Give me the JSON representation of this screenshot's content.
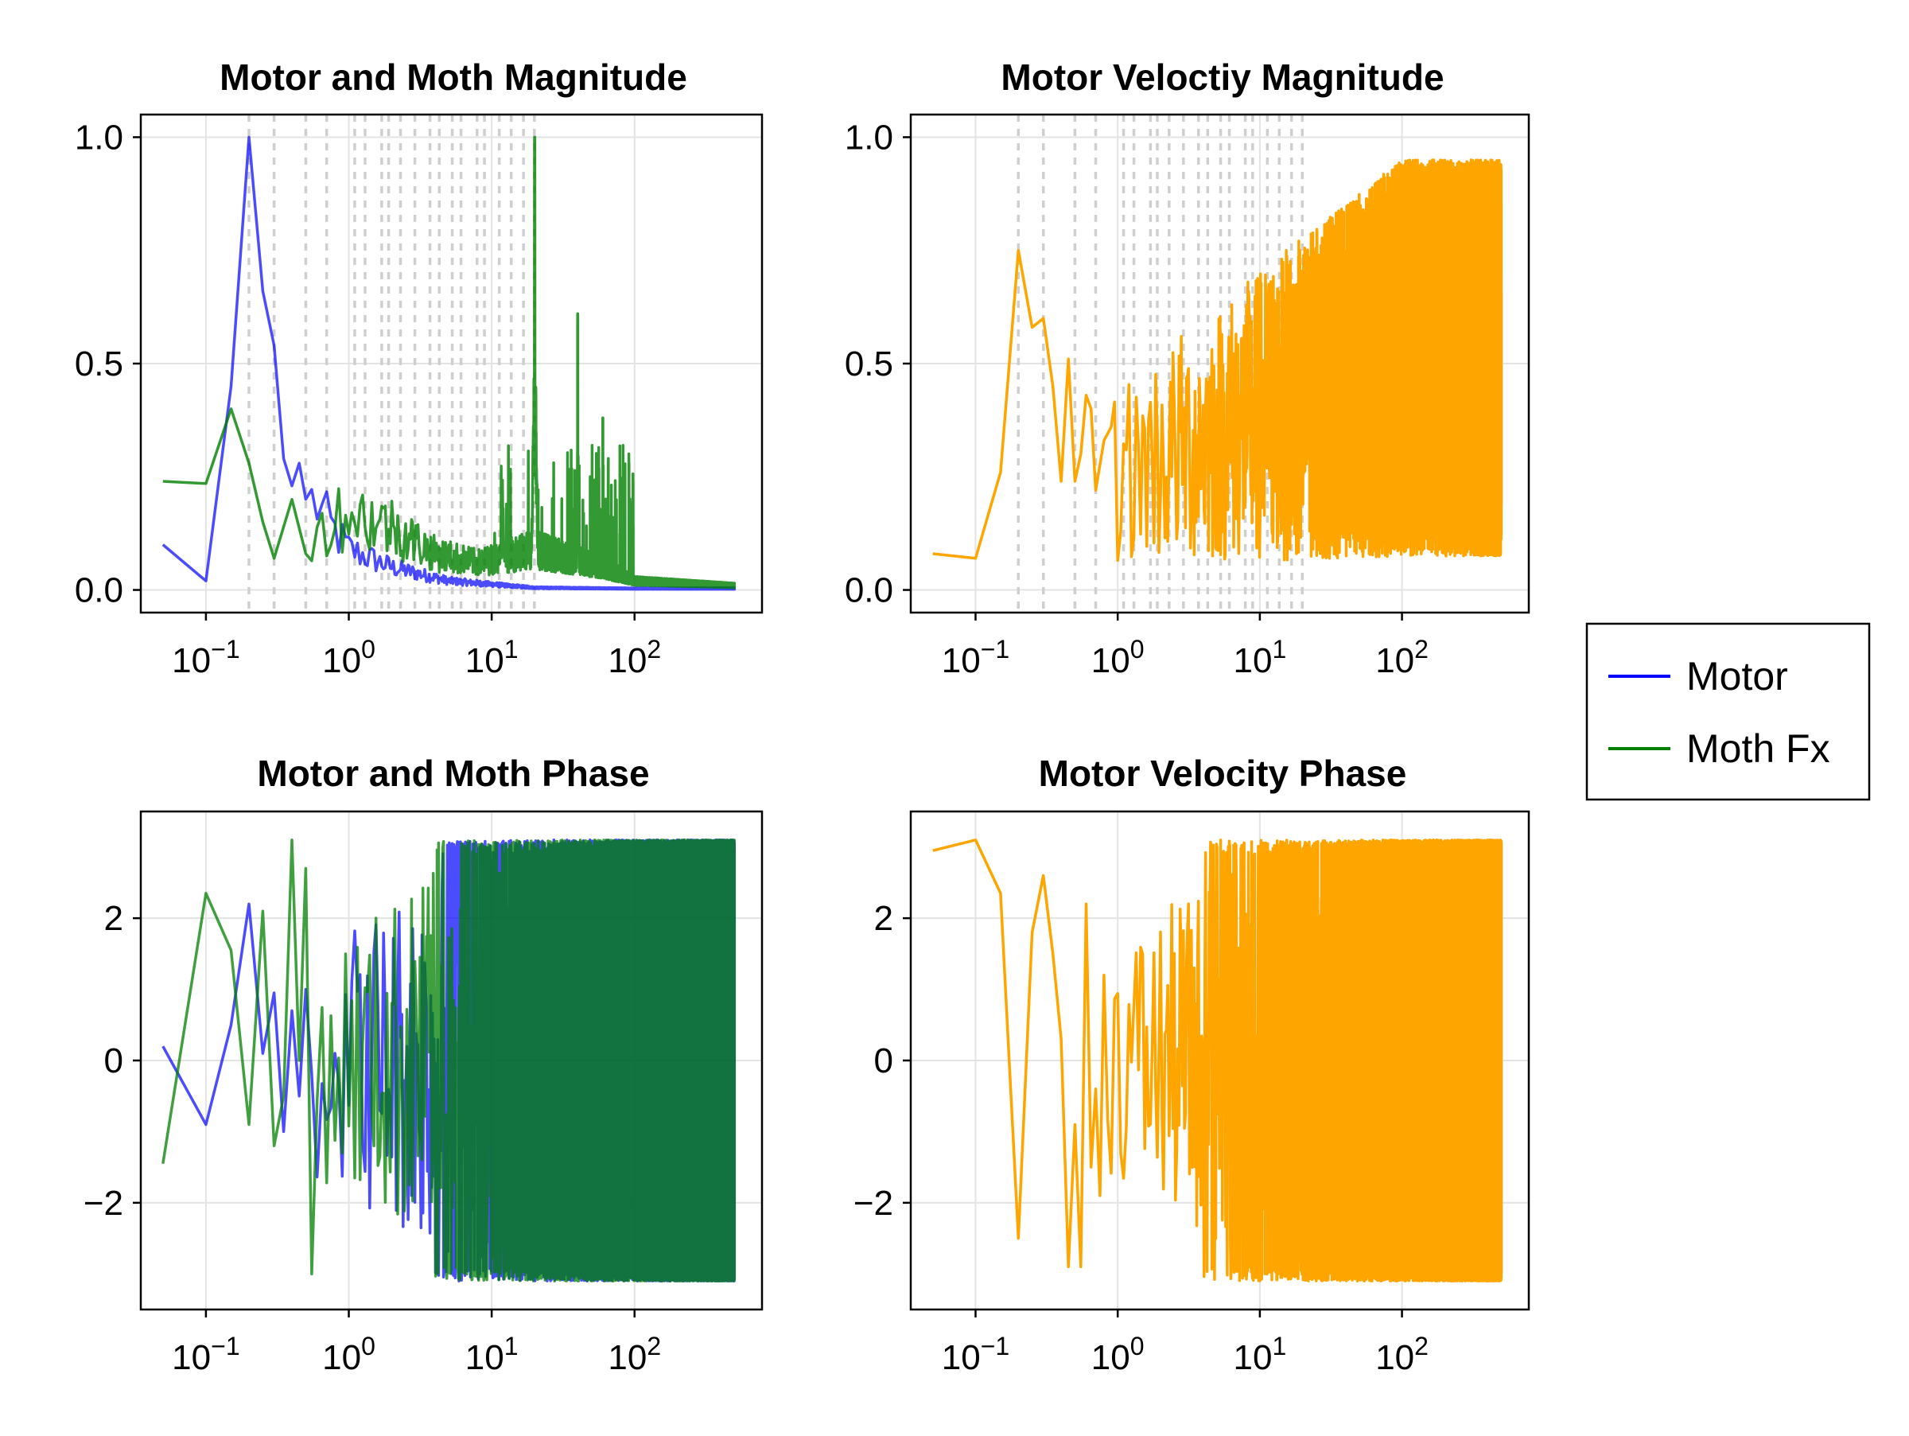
{
  "chart_data": [
    {
      "id": "mag-motor-moth",
      "type": "line",
      "title": "Motor and Moth Magnitude",
      "xscale": "log",
      "xlim": [
        0.035,
        780
      ],
      "ylim": [
        -0.05,
        1.05
      ],
      "xticks": [
        {
          "label": "10",
          "exp": "−1"
        },
        {
          "label": "10",
          "exp": "0"
        },
        {
          "label": "10",
          "exp": "1"
        },
        {
          "label": "10",
          "exp": "2"
        }
      ],
      "yticks": [
        {
          "value": 0.0,
          "label": "0.0"
        },
        {
          "value": 0.5,
          "label": "0.5"
        },
        {
          "value": 1.0,
          "label": "1.0"
        }
      ],
      "grid": true,
      "vlines": [
        0.2,
        0.3,
        0.5,
        0.7,
        1.1,
        1.3,
        1.7,
        1.9,
        2.3,
        2.9,
        3.7,
        4.3,
        5.3,
        6.1,
        7.9,
        8.9,
        11.3,
        13.7,
        16.7,
        19.9
      ],
      "series": [
        {
          "name": "Motor",
          "color": "#0000ff",
          "opacity": 0.7,
          "kind": "decay",
          "anchors": [
            [
              0.05,
              0.1
            ],
            [
              0.1,
              0.02
            ],
            [
              0.15,
              0.45
            ],
            [
              0.2,
              1.0
            ],
            [
              0.25,
              0.66
            ],
            [
              0.3,
              0.54
            ],
            [
              0.35,
              0.29
            ],
            [
              0.4,
              0.23
            ],
            [
              0.45,
              0.28
            ],
            [
              0.5,
              0.2
            ],
            [
              0.6,
              0.19
            ],
            [
              0.7,
              0.15
            ],
            [
              1.0,
              0.09
            ],
            [
              2.0,
              0.05
            ],
            [
              5.0,
              0.02
            ],
            [
              20,
              0.005
            ],
            [
              100,
              0.003
            ],
            [
              500,
              0.003
            ]
          ]
        },
        {
          "name": "Moth Fx",
          "color": "#008000",
          "opacity": 0.8,
          "kind": "spiky",
          "anchors": [
            [
              0.05,
              0.24
            ],
            [
              0.1,
              0.235
            ],
            [
              0.15,
              0.4
            ],
            [
              0.2,
              0.28
            ],
            [
              0.25,
              0.15
            ],
            [
              0.3,
              0.07
            ],
            [
              0.4,
              0.2
            ],
            [
              0.5,
              0.08
            ],
            [
              0.7,
              0.15
            ],
            [
              1.0,
              0.17
            ],
            [
              2.0,
              0.14
            ],
            [
              4.0,
              0.08
            ],
            [
              8.0,
              0.06
            ],
            [
              20,
              0.09
            ],
            [
              60,
              0.05
            ],
            [
              100,
              0.02
            ],
            [
              500,
              0.01
            ]
          ],
          "peaks": [
            [
              20.0,
              1.0
            ],
            [
              40.0,
              0.61
            ],
            [
              60.0,
              0.38
            ],
            [
              80.0,
              0.22
            ],
            [
              12.0,
              0.18
            ]
          ]
        }
      ]
    },
    {
      "id": "mag-velocity",
      "type": "line",
      "title": "Motor Veloctiy Magnitude",
      "xscale": "log",
      "xlim": [
        0.035,
        780
      ],
      "ylim": [
        -0.05,
        1.05
      ],
      "xticks": [
        {
          "label": "10",
          "exp": "−1"
        },
        {
          "label": "10",
          "exp": "0"
        },
        {
          "label": "10",
          "exp": "1"
        },
        {
          "label": "10",
          "exp": "2"
        }
      ],
      "yticks": [
        {
          "value": 0.0,
          "label": "0.0"
        },
        {
          "value": 0.5,
          "label": "0.5"
        },
        {
          "value": 1.0,
          "label": "1.0"
        }
      ],
      "grid": true,
      "vlines": [
        0.2,
        0.3,
        0.5,
        0.7,
        1.1,
        1.3,
        1.7,
        1.9,
        2.3,
        2.9,
        3.7,
        4.3,
        5.3,
        6.1,
        7.9,
        8.9,
        11.3,
        13.7,
        16.7,
        19.9
      ],
      "series": [
        {
          "name": "Motor velocity",
          "color": "#ffa500",
          "opacity": 1.0,
          "kind": "band",
          "anchors": [
            [
              0.05,
              0.08
            ],
            [
              0.1,
              0.07
            ],
            [
              0.15,
              0.26
            ],
            [
              0.2,
              0.75
            ],
            [
              0.25,
              0.58
            ],
            [
              0.3,
              0.6
            ],
            [
              0.35,
              0.45
            ],
            [
              0.4,
              0.24
            ],
            [
              0.45,
              0.51
            ],
            [
              0.5,
              0.24
            ],
            [
              0.55,
              0.3
            ],
            [
              0.6,
              0.43
            ],
            [
              0.65,
              0.4
            ],
            [
              0.7,
              0.22
            ],
            [
              0.8,
              0.33
            ],
            [
              0.9,
              0.36
            ]
          ],
          "band_start": 0.9,
          "band_low": [
            0.05,
            0.1
          ],
          "band_high": [
            0.45,
            0.95
          ]
        }
      ]
    },
    {
      "id": "phase-motor-moth",
      "type": "line",
      "title": "Motor and Moth Phase",
      "xscale": "log",
      "xlim": [
        0.035,
        780
      ],
      "ylim": [
        -3.5,
        3.5
      ],
      "xticks": [
        {
          "label": "10",
          "exp": "−1"
        },
        {
          "label": "10",
          "exp": "0"
        },
        {
          "label": "10",
          "exp": "1"
        },
        {
          "label": "10",
          "exp": "2"
        }
      ],
      "yticks": [
        {
          "value": -2,
          "label": "−2"
        },
        {
          "value": 0,
          "label": "0"
        },
        {
          "value": 2,
          "label": "2"
        }
      ],
      "grid": true,
      "vlines": [],
      "series": [
        {
          "name": "Motor",
          "color": "#0000ff",
          "opacity": 0.7,
          "kind": "phase",
          "anchors": [
            [
              0.05,
              0.2
            ],
            [
              0.1,
              -0.9
            ],
            [
              0.15,
              0.5
            ],
            [
              0.2,
              2.2
            ],
            [
              0.25,
              0.1
            ],
            [
              0.3,
              0.95
            ],
            [
              0.35,
              -1.0
            ],
            [
              0.4,
              0.7
            ],
            [
              0.45,
              -0.5
            ],
            [
              0.5,
              1.0
            ]
          ]
        },
        {
          "name": "Moth Fx",
          "color": "#008000",
          "opacity": 0.75,
          "kind": "phase",
          "anchors": [
            [
              0.05,
              -1.45
            ],
            [
              0.1,
              2.35
            ],
            [
              0.15,
              1.55
            ],
            [
              0.2,
              -0.9
            ],
            [
              0.25,
              2.1
            ],
            [
              0.3,
              -1.2
            ],
            [
              0.35,
              -0.5
            ],
            [
              0.4,
              3.1
            ],
            [
              0.45,
              0.0
            ],
            [
              0.5,
              2.7
            ],
            [
              0.55,
              -3.0
            ]
          ]
        }
      ]
    },
    {
      "id": "phase-velocity",
      "type": "line",
      "title": "Motor Velocity Phase",
      "xscale": "log",
      "xlim": [
        0.035,
        780
      ],
      "ylim": [
        -3.5,
        3.5
      ],
      "xticks": [
        {
          "label": "10",
          "exp": "−1"
        },
        {
          "label": "10",
          "exp": "0"
        },
        {
          "label": "10",
          "exp": "1"
        },
        {
          "label": "10",
          "exp": "2"
        }
      ],
      "yticks": [
        {
          "value": -2,
          "label": "−2"
        },
        {
          "value": 0,
          "label": "0"
        },
        {
          "value": 2,
          "label": "2"
        }
      ],
      "grid": true,
      "vlines": [],
      "series": [
        {
          "name": "Motor velocity",
          "color": "#ffa500",
          "opacity": 1.0,
          "kind": "phase",
          "anchors": [
            [
              0.05,
              2.95
            ],
            [
              0.1,
              3.1
            ],
            [
              0.15,
              2.35
            ],
            [
              0.2,
              -2.5
            ],
            [
              0.25,
              1.8
            ],
            [
              0.3,
              2.6
            ],
            [
              0.35,
              1.5
            ],
            [
              0.4,
              0.3
            ],
            [
              0.45,
              -2.9
            ],
            [
              0.5,
              -0.9
            ],
            [
              0.55,
              -2.9
            ],
            [
              0.6,
              2.2
            ],
            [
              0.65,
              -1.5
            ],
            [
              0.7,
              -0.4
            ],
            [
              0.75,
              -1.9
            ],
            [
              0.8,
              1.2
            ]
          ]
        }
      ]
    }
  ],
  "legend": {
    "placement": "right",
    "entries": [
      {
        "label": "Motor",
        "color": "#0000ff"
      },
      {
        "label": "Moth Fx",
        "color": "#008000"
      }
    ]
  }
}
